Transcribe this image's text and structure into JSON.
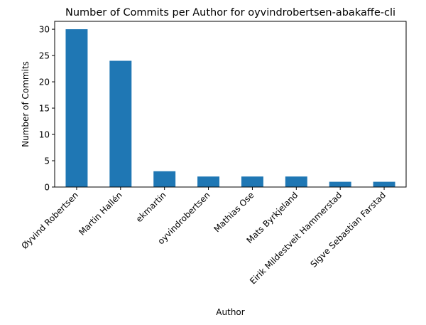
{
  "chart_data": {
    "type": "bar",
    "title": "Number of Commits per Author for oyvindrobertsen-abakaffe-cli",
    "xlabel": "Author",
    "ylabel": "Number of Commits",
    "categories": [
      "Øyvind Robertsen",
      "Martin Hallén",
      "ekmartin",
      "oyvindrobertsen",
      "Mathias Ose",
      "Mats Byrkjeland",
      "Eirik Mildestveit Hammerstad",
      "Sigve Sebastian Farstad"
    ],
    "values": [
      30,
      24,
      3,
      2,
      2,
      2,
      1,
      1
    ],
    "ylim": [
      0,
      31.5
    ],
    "yticks": [
      0,
      5,
      10,
      15,
      20,
      25,
      30
    ],
    "bar_color": "#1f77b4",
    "grid": false,
    "legend": "none"
  }
}
